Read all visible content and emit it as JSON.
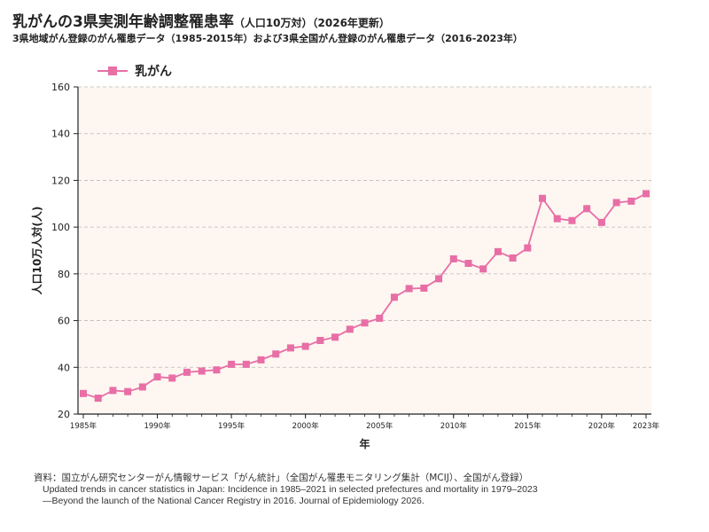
{
  "title": {
    "main": "乳がんの3県実測年齢調整罹患率",
    "suffix": "（人口10万対）（2026年更新）",
    "subtitle": "3県地域がん登録のがん罹患データ（1985-2015年）および3県全国がん登録のがん罹患データ（2016-2023年）"
  },
  "colors": {
    "series": "#e86ea6",
    "plot_bg": "#fdf6f1",
    "grid": "#bbbbbb"
  },
  "chart_data": {
    "type": "line",
    "xlabel": "年",
    "ylabel": "人口10万人対(人)",
    "ylim": [
      20,
      160
    ],
    "yticks": [
      20,
      40,
      60,
      80,
      100,
      120,
      140,
      160
    ],
    "xlim": [
      1985,
      2023
    ],
    "xticks": [
      {
        "year": 1985,
        "label": "1985年"
      },
      {
        "year": 1990,
        "label": "1990年"
      },
      {
        "year": 1995,
        "label": "1995年"
      },
      {
        "year": 2000,
        "label": "2000年"
      },
      {
        "year": 2005,
        "label": "2005年"
      },
      {
        "year": 2010,
        "label": "2010年"
      },
      {
        "year": 2015,
        "label": "2015年"
      },
      {
        "year": 2020,
        "label": "2020年"
      },
      {
        "year": 2023,
        "label": "2023年"
      }
    ],
    "grid": true,
    "legend_position": "top-left",
    "series": [
      {
        "name": "乳がん",
        "marker": "square",
        "x": [
          1985,
          1986,
          1987,
          1988,
          1989,
          1990,
          1991,
          1992,
          1993,
          1994,
          1995,
          1996,
          1997,
          1998,
          1999,
          2000,
          2001,
          2002,
          2003,
          2004,
          2005,
          2006,
          2007,
          2008,
          2009,
          2010,
          2011,
          2012,
          2013,
          2014,
          2015,
          2016,
          2017,
          2018,
          2019,
          2020,
          2021,
          2022,
          2023
        ],
        "values": [
          28.8,
          26.8,
          30.1,
          29.6,
          31.6,
          35.9,
          35.4,
          37.9,
          38.4,
          38.9,
          41.3,
          41.3,
          43.2,
          45.7,
          48.3,
          49.0,
          51.5,
          52.9,
          56.3,
          59.0,
          61.0,
          70.0,
          73.7,
          73.9,
          77.9,
          86.4,
          84.5,
          82.1,
          89.5,
          86.8,
          91.1,
          112.3,
          103.6,
          102.8,
          107.9,
          102.0,
          110.5,
          111.1,
          114.3
        ]
      }
    ]
  },
  "source": {
    "line1": "資料：国立がん研究センターがん情報サービス「がん統計」（全国がん罹患モニタリング集計（MCIJ）、全国がん登録）",
    "line2": "Updated trends in cancer statistics in Japan: Incidence in 1985–2021 in selected prefectures and mortality in 1979–2023",
    "line3": "—Beyond the launch of the National Cancer Registry in 2016. Journal of Epidemiology 2026."
  }
}
